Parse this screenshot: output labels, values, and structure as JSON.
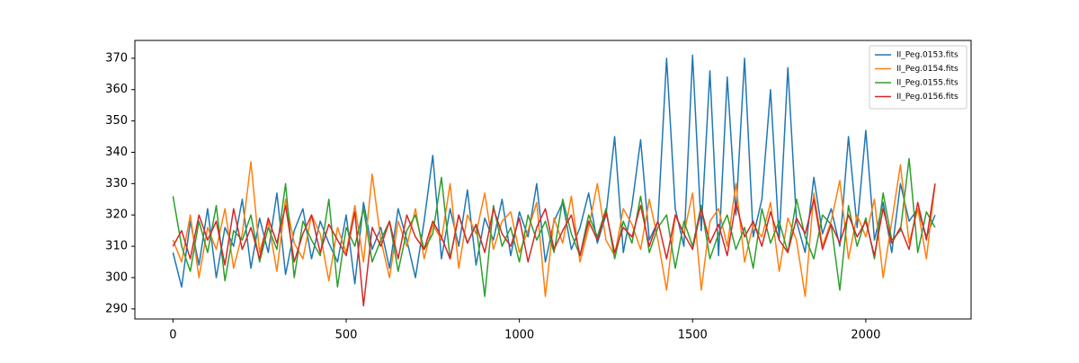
{
  "chart_data": {
    "type": "line",
    "x": [
      0,
      25,
      50,
      75,
      100,
      125,
      150,
      175,
      200,
      225,
      250,
      275,
      300,
      325,
      350,
      375,
      400,
      425,
      450,
      475,
      500,
      525,
      550,
      575,
      600,
      625,
      650,
      675,
      700,
      725,
      750,
      775,
      800,
      825,
      850,
      875,
      900,
      925,
      950,
      975,
      1000,
      1025,
      1050,
      1075,
      1100,
      1125,
      1150,
      1175,
      1200,
      1225,
      1250,
      1275,
      1300,
      1325,
      1350,
      1375,
      1400,
      1425,
      1450,
      1475,
      1500,
      1525,
      1550,
      1575,
      1600,
      1625,
      1650,
      1675,
      1700,
      1725,
      1750,
      1775,
      1800,
      1825,
      1850,
      1875,
      1900,
      1925,
      1950,
      1975,
      2000,
      2025,
      2050,
      2075,
      2100,
      2125,
      2150,
      2175,
      2200
    ],
    "series": [
      {
        "name": "II_Peg.0153.fits",
        "color": "#1f77b4",
        "values": [
          308,
          297,
          318,
          304,
          322,
          300,
          316,
          310,
          325,
          303,
          319,
          308,
          327,
          301,
          315,
          322,
          306,
          318,
          311,
          305,
          320,
          298,
          324,
          309,
          316,
          303,
          322,
          312,
          300,
          318,
          339,
          306,
          322,
          310,
          328,
          304,
          319,
          312,
          325,
          307,
          321,
          313,
          330,
          305,
          318,
          324,
          309,
          316,
          327,
          311,
          320,
          345,
          308,
          323,
          344,
          312,
          318,
          370,
          322,
          310,
          371,
          315,
          366,
          307,
          364,
          320,
          370,
          313,
          325,
          360,
          312,
          367,
          318,
          308,
          332,
          314,
          322,
          310,
          345,
          316,
          347,
          312,
          324,
          308,
          330,
          318,
          322,
          313,
          320
        ]
      },
      {
        "name": "II_Peg.0154.fits",
        "color": "#ff7f0e",
        "values": [
          312,
          305,
          320,
          300,
          316,
          309,
          322,
          303,
          314,
          337,
          308,
          318,
          302,
          325,
          311,
          306,
          320,
          314,
          299,
          316,
          308,
          323,
          305,
          333,
          312,
          300,
          318,
          310,
          322,
          306,
          317,
          312,
          330,
          303,
          320,
          314,
          327,
          309,
          318,
          321,
          308,
          315,
          324,
          294,
          319,
          311,
          326,
          305,
          316,
          330,
          312,
          307,
          322,
          317,
          309,
          325,
          312,
          296,
          320,
          314,
          327,
          296,
          318,
          322,
          310,
          330,
          305,
          317,
          313,
          324,
          302,
          319,
          312,
          294,
          327,
          310,
          318,
          331,
          306,
          320,
          313,
          325,
          300,
          318,
          336,
          311,
          322,
          306,
          330
        ]
      },
      {
        "name": "II_Peg.0155.fits",
        "color": "#2ca02c",
        "values": [
          326,
          310,
          302,
          318,
          308,
          323,
          299,
          315,
          312,
          320,
          305,
          316,
          309,
          330,
          300,
          318,
          312,
          307,
          325,
          297,
          316,
          310,
          322,
          305,
          312,
          318,
          302,
          315,
          320,
          309,
          314,
          332,
          306,
          320,
          311,
          317,
          294,
          323,
          310,
          316,
          305,
          320,
          312,
          318,
          308,
          325,
          314,
          307,
          320,
          313,
          322,
          306,
          318,
          311,
          326,
          308,
          316,
          320,
          303,
          318,
          310,
          323,
          306,
          314,
          320,
          309,
          316,
          303,
          322,
          311,
          318,
          308,
          325,
          313,
          306,
          320,
          317,
          296,
          323,
          310,
          319,
          306,
          327,
          312,
          315,
          338,
          308,
          321,
          316
        ]
      },
      {
        "name": "II_Peg.0156.fits",
        "color": "#d62728",
        "values": [
          310,
          315,
          306,
          320,
          312,
          318,
          304,
          322,
          309,
          316,
          306,
          319,
          311,
          323,
          305,
          314,
          320,
          308,
          317,
          312,
          307,
          321,
          291,
          316,
          310,
          318,
          306,
          320,
          313,
          309,
          318,
          313,
          306,
          320,
          311,
          317,
          308,
          322,
          314,
          310,
          319,
          305,
          316,
          322,
          309,
          315,
          320,
          307,
          318,
          312,
          321,
          308,
          316,
          313,
          323,
          310,
          318,
          306,
          320,
          314,
          309,
          322,
          311,
          317,
          307,
          324,
          313,
          318,
          310,
          321,
          312,
          308,
          319,
          314,
          325,
          309,
          317,
          311,
          320,
          313,
          318,
          307,
          322,
          311,
          316,
          309,
          324,
          312,
          330
        ]
      }
    ],
    "xlim": [
      -110,
      2304
    ],
    "ylim": [
      286.8,
      375.7
    ],
    "xticks": [
      0,
      500,
      1000,
      1500,
      2000
    ],
    "yticks": [
      290,
      300,
      310,
      320,
      330,
      340,
      350,
      360,
      370
    ],
    "legend": "upper right"
  }
}
